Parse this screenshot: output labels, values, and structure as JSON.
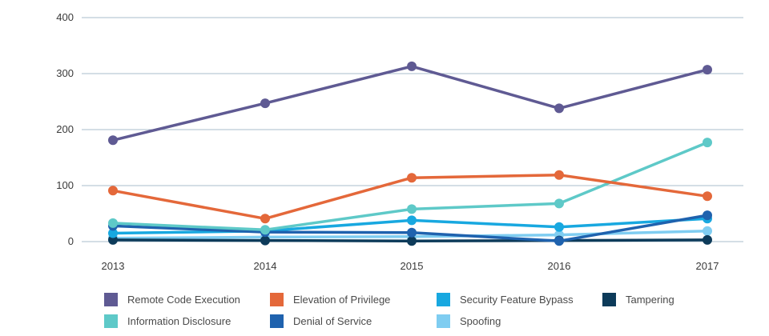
{
  "chart_data": {
    "type": "line",
    "x": [
      "2013",
      "2014",
      "2015",
      "2016",
      "2017"
    ],
    "ylim": [
      0,
      400
    ],
    "yticks": [
      0,
      100,
      200,
      300,
      400
    ],
    "grid": true,
    "legend_position": "bottom",
    "series": [
      {
        "name": "Remote Code Execution",
        "color": "#5f5a93",
        "values": [
          181,
          247,
          313,
          238,
          307
        ]
      },
      {
        "name": "Elevation of Privilege",
        "color": "#e4683a",
        "values": [
          91,
          41,
          114,
          119,
          81
        ]
      },
      {
        "name": "Security Feature Bypass",
        "color": "#18a8e0",
        "values": [
          15,
          19,
          38,
          26,
          41
        ]
      },
      {
        "name": "Tampering",
        "color": "#0d3b5a",
        "values": [
          3,
          2,
          1,
          2,
          3
        ]
      },
      {
        "name": "Information Disclosure",
        "color": "#5ec9c8",
        "values": [
          33,
          21,
          58,
          68,
          177
        ]
      },
      {
        "name": "Denial of Service",
        "color": "#1f62ae",
        "values": [
          28,
          17,
          16,
          1,
          47
        ]
      },
      {
        "name": "Spoofing",
        "color": "#7fcdf1",
        "values": [
          6,
          8,
          9,
          12,
          19
        ]
      }
    ]
  }
}
